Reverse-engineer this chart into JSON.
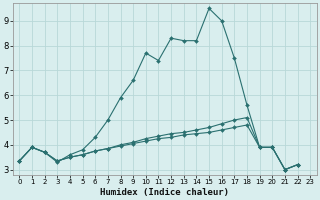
{
  "xlabel": "Humidex (Indice chaleur)",
  "background_color": "#d9eeee",
  "grid_color": "#b8d8d8",
  "line_color": "#2a7070",
  "xlim": [
    -0.5,
    23.5
  ],
  "ylim": [
    2.8,
    9.7
  ],
  "xticks": [
    0,
    1,
    2,
    3,
    4,
    5,
    6,
    7,
    8,
    9,
    10,
    11,
    12,
    13,
    14,
    15,
    16,
    17,
    18,
    19,
    20,
    21,
    22,
    23
  ],
  "yticks": [
    3,
    4,
    5,
    6,
    7,
    8,
    9
  ],
  "series1_x": [
    0,
    1,
    2,
    3,
    4,
    5,
    6,
    7,
    8,
    9,
    10,
    11,
    12,
    13,
    14,
    15,
    16,
    17,
    18,
    19,
    20,
    21,
    22
  ],
  "series1_y": [
    3.35,
    3.9,
    3.7,
    3.3,
    3.6,
    3.8,
    4.3,
    5.0,
    5.9,
    6.6,
    7.7,
    7.4,
    8.3,
    8.2,
    8.2,
    9.5,
    9.0,
    7.5,
    5.6,
    3.9,
    3.9,
    3.0,
    3.2
  ],
  "series2_x": [
    0,
    1,
    2,
    3,
    4,
    5,
    6,
    7,
    8,
    9,
    10,
    11,
    12,
    13,
    14,
    15,
    16,
    17,
    18,
    19,
    20,
    21,
    22
  ],
  "series2_y": [
    3.35,
    3.9,
    3.7,
    3.35,
    3.5,
    3.6,
    3.75,
    3.85,
    4.0,
    4.1,
    4.25,
    4.35,
    4.45,
    4.5,
    4.6,
    4.7,
    4.85,
    5.0,
    5.1,
    3.9,
    3.9,
    3.0,
    3.2
  ],
  "series3_x": [
    0,
    1,
    2,
    3,
    4,
    5,
    6,
    7,
    8,
    9,
    10,
    11,
    12,
    13,
    14,
    15,
    16,
    17,
    18,
    19,
    20,
    21,
    22
  ],
  "series3_y": [
    3.35,
    3.9,
    3.7,
    3.35,
    3.5,
    3.6,
    3.75,
    3.85,
    3.95,
    4.05,
    4.15,
    4.25,
    4.3,
    4.4,
    4.45,
    4.5,
    4.6,
    4.7,
    4.8,
    3.9,
    3.9,
    3.0,
    3.2
  ]
}
